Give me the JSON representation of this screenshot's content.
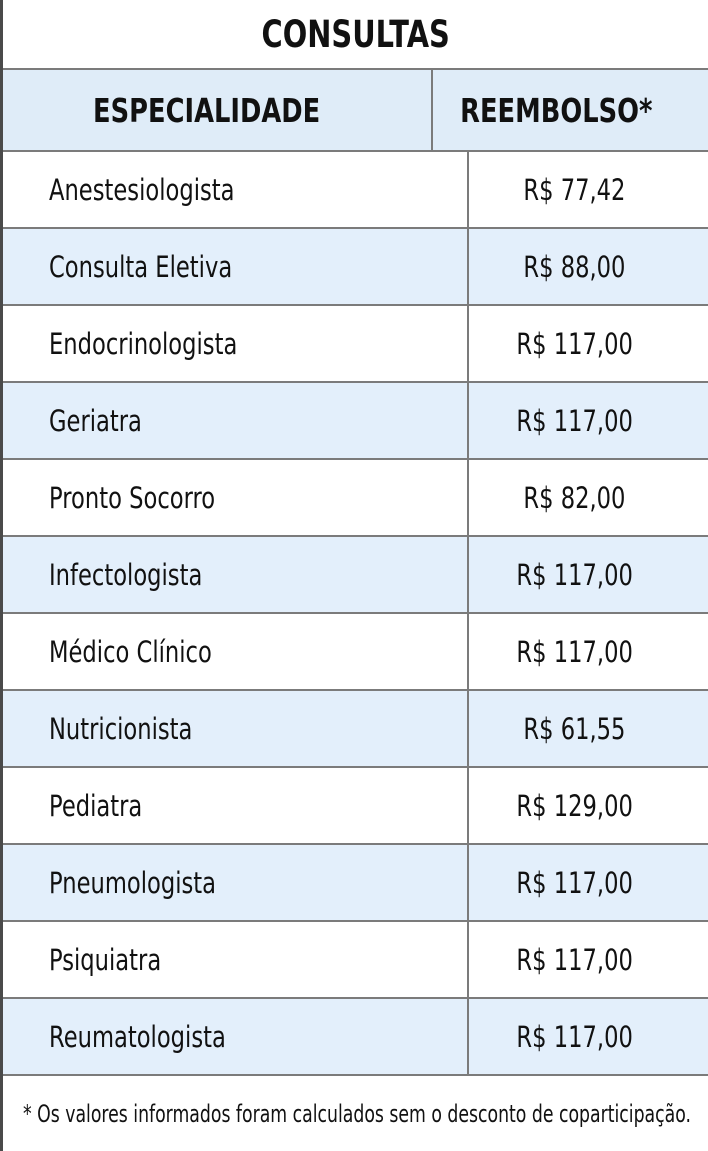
{
  "table": {
    "title": "CONSULTAS",
    "columns": [
      {
        "label": "ESPECIALIDADE"
      },
      {
        "label": "REEMBOLSO*"
      }
    ],
    "rows": [
      {
        "specialty": "Anestesiologista",
        "value": "R$ 77,42"
      },
      {
        "specialty": "Consulta Eletiva",
        "value": "R$ 88,00"
      },
      {
        "specialty": "Endocrinologista",
        "value": "R$ 117,00"
      },
      {
        "specialty": "Geriatra",
        "value": "R$ 117,00"
      },
      {
        "specialty": "Pronto Socorro",
        "value": "R$ 82,00"
      },
      {
        "specialty": "Infectologista",
        "value": "R$ 117,00"
      },
      {
        "specialty": "Médico Clínico",
        "value": "R$ 117,00"
      },
      {
        "specialty": "Nutricionista",
        "value": "R$ 61,55"
      },
      {
        "specialty": "Pediatra",
        "value": "R$ 129,00"
      },
      {
        "specialty": "Pneumologista",
        "value": "R$ 117,00"
      },
      {
        "specialty": "Psiquiatra",
        "value": "R$ 117,00"
      },
      {
        "specialty": "Reumatologista",
        "value": "R$ 117,00"
      }
    ],
    "footnote": "* Os valores informados foram calculados sem o desconto de coparticipação."
  },
  "colors": {
    "header_bg": "#dfecf8",
    "alt_row_bg": "#e3effb",
    "grid_line": "#7b7b7b",
    "outer_border": "#4a4a4a",
    "text": "#111111"
  }
}
